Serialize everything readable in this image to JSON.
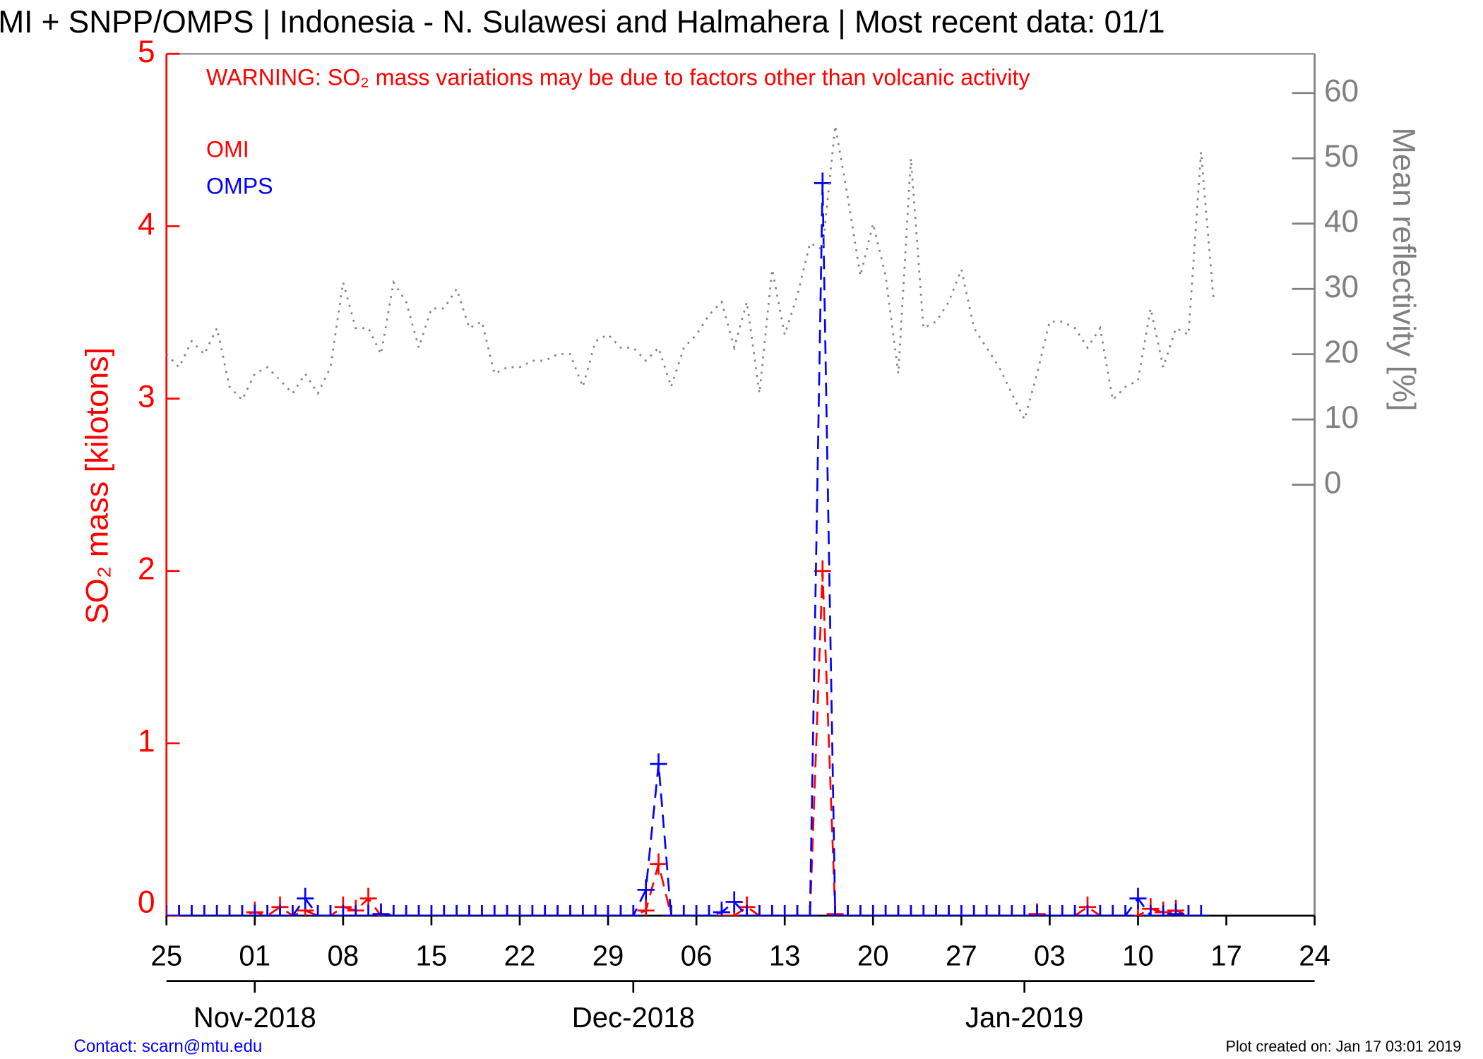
{
  "chart_data": {
    "type": "line",
    "title": "MI + SNPP/OMPS | Indonesia - N. Sulawesi and Halmahera | Most recent data: 01/1",
    "warning": "WARNING: SO₂ mass variations may be due to factors other than volcanic activity",
    "ylabel": "SO₂ mass [kilotons]",
    "y2label": "Mean reflectivity [%]",
    "contact": "Contact: scarn@mtu.edu",
    "created": "Plot created on: Jan 17 03:01 2019",
    "x": [
      "2018-10-25",
      "2018-10-26",
      "2018-10-27",
      "2018-10-28",
      "2018-10-29",
      "2018-10-30",
      "2018-10-31",
      "2018-11-01",
      "2018-11-02",
      "2018-11-03",
      "2018-11-04",
      "2018-11-05",
      "2018-11-06",
      "2018-11-07",
      "2018-11-08",
      "2018-11-09",
      "2018-11-10",
      "2018-11-11",
      "2018-11-12",
      "2018-11-13",
      "2018-11-14",
      "2018-11-15",
      "2018-11-16",
      "2018-11-17",
      "2018-11-18",
      "2018-11-19",
      "2018-11-20",
      "2018-11-21",
      "2018-11-22",
      "2018-11-23",
      "2018-11-24",
      "2018-11-25",
      "2018-11-26",
      "2018-11-27",
      "2018-11-28",
      "2018-11-29",
      "2018-11-30",
      "2018-12-01",
      "2018-12-02",
      "2018-12-03",
      "2018-12-04",
      "2018-12-05",
      "2018-12-06",
      "2018-12-07",
      "2018-12-08",
      "2018-12-09",
      "2018-12-10",
      "2018-12-11",
      "2018-12-12",
      "2018-12-13",
      "2018-12-14",
      "2018-12-15",
      "2018-12-16",
      "2018-12-17",
      "2018-12-18",
      "2018-12-19",
      "2018-12-20",
      "2018-12-21",
      "2018-12-22",
      "2018-12-23",
      "2018-12-24",
      "2018-12-25",
      "2018-12-26",
      "2018-12-27",
      "2018-12-28",
      "2018-12-29",
      "2018-12-30",
      "2018-12-31",
      "2019-01-01",
      "2019-01-02",
      "2019-01-03",
      "2019-01-04",
      "2019-01-05",
      "2019-01-06",
      "2019-01-07",
      "2019-01-08",
      "2019-01-09",
      "2019-01-10",
      "2019-01-11",
      "2019-01-12",
      "2019-01-13",
      "2019-01-14",
      "2019-01-15",
      "2019-01-16"
    ],
    "series": [
      {
        "name": "OMI",
        "color": "#ff0000",
        "values": [
          0,
          0,
          0,
          0,
          0,
          0,
          0,
          0.02,
          0,
          0.05,
          0,
          0.03,
          0,
          0,
          0.05,
          0.03,
          0.1,
          0,
          0,
          0,
          0,
          0,
          0,
          0,
          0,
          0,
          0,
          0,
          0,
          0,
          0,
          0,
          0,
          0,
          0,
          0,
          0,
          0,
          0.03,
          0.3,
          0,
          0,
          0,
          0,
          0,
          0,
          0.05,
          0,
          0,
          0,
          0,
          0,
          2,
          0.01,
          0,
          0,
          0,
          0,
          0,
          0,
          0,
          0,
          0,
          0,
          0,
          0,
          0,
          0,
          0,
          0.01,
          0,
          0,
          0,
          0.05,
          0,
          0,
          0,
          0,
          0.04,
          0.02,
          0.03,
          0,
          null,
          null
        ]
      },
      {
        "name": "OMPS",
        "color": "#0000ff",
        "values": [
          0,
          0,
          0,
          0,
          0,
          0,
          0,
          0,
          0,
          0,
          0,
          0.1,
          0,
          0,
          0,
          0,
          0,
          0.01,
          0,
          0,
          0,
          0,
          0,
          0,
          0,
          0,
          0,
          0,
          0,
          0,
          0,
          0,
          0,
          0,
          0,
          0,
          0,
          0,
          0.15,
          0.88,
          0,
          0,
          0,
          0,
          0.02,
          0.08,
          0,
          0,
          0,
          0,
          0,
          0,
          4.25,
          0,
          0,
          0,
          0,
          0,
          0,
          0,
          0,
          0,
          0,
          0,
          0,
          0,
          0,
          0,
          0,
          0,
          0,
          0,
          0,
          0,
          0,
          0,
          0,
          0.1,
          0,
          0,
          0.01,
          0,
          0,
          null
        ]
      },
      {
        "name": "Mean reflectivity",
        "color": "#808080",
        "axis": "y2",
        "values": [
          20,
          18,
          22,
          20,
          24,
          15,
          13,
          17,
          18,
          16,
          14,
          17,
          14,
          18,
          31,
          24,
          24,
          20,
          31,
          28,
          21,
          27,
          27,
          30,
          24,
          25,
          17,
          18,
          18,
          19,
          19,
          20,
          20,
          15,
          22,
          23,
          21,
          21,
          19,
          21,
          15,
          21,
          23,
          26,
          28,
          21,
          28,
          14,
          33,
          23,
          29,
          37,
          36,
          55,
          44,
          32,
          40,
          32,
          17,
          50,
          24,
          25,
          28,
          33,
          24,
          21,
          18,
          14,
          10,
          17,
          25,
          25,
          24,
          21,
          24,
          13,
          15,
          16,
          27,
          18,
          24,
          23,
          51,
          28
        ]
      }
    ],
    "xlim": [
      "2018-10-25",
      "2019-01-24"
    ],
    "xticks": [
      {
        "value": "2018-10-25",
        "label": "25"
      },
      {
        "value": "2018-11-01",
        "label": "01"
      },
      {
        "value": "2018-11-08",
        "label": "08"
      },
      {
        "value": "2018-11-15",
        "label": "15"
      },
      {
        "value": "2018-11-22",
        "label": "22"
      },
      {
        "value": "2018-11-29",
        "label": "29"
      },
      {
        "value": "2018-12-06",
        "label": "06"
      },
      {
        "value": "2018-12-13",
        "label": "13"
      },
      {
        "value": "2018-12-20",
        "label": "20"
      },
      {
        "value": "2018-12-27",
        "label": "27"
      },
      {
        "value": "2019-01-03",
        "label": "03"
      },
      {
        "value": "2019-01-10",
        "label": "10"
      },
      {
        "value": "2019-01-17",
        "label": "17"
      },
      {
        "value": "2019-01-24",
        "label": "24"
      }
    ],
    "month_ticks": [
      {
        "value": "2018-11-01",
        "label": "Nov-2018"
      },
      {
        "value": "2018-12-01",
        "label": "Dec-2018"
      },
      {
        "value": "2019-01-01",
        "label": "Jan-2019"
      }
    ],
    "ylim": [
      0,
      5
    ],
    "yticks": [
      0,
      1,
      2,
      3,
      4,
      5
    ],
    "y2lim": [
      -66,
      66
    ],
    "y2ticks": [
      0,
      10,
      20,
      30,
      40,
      50,
      60
    ]
  }
}
